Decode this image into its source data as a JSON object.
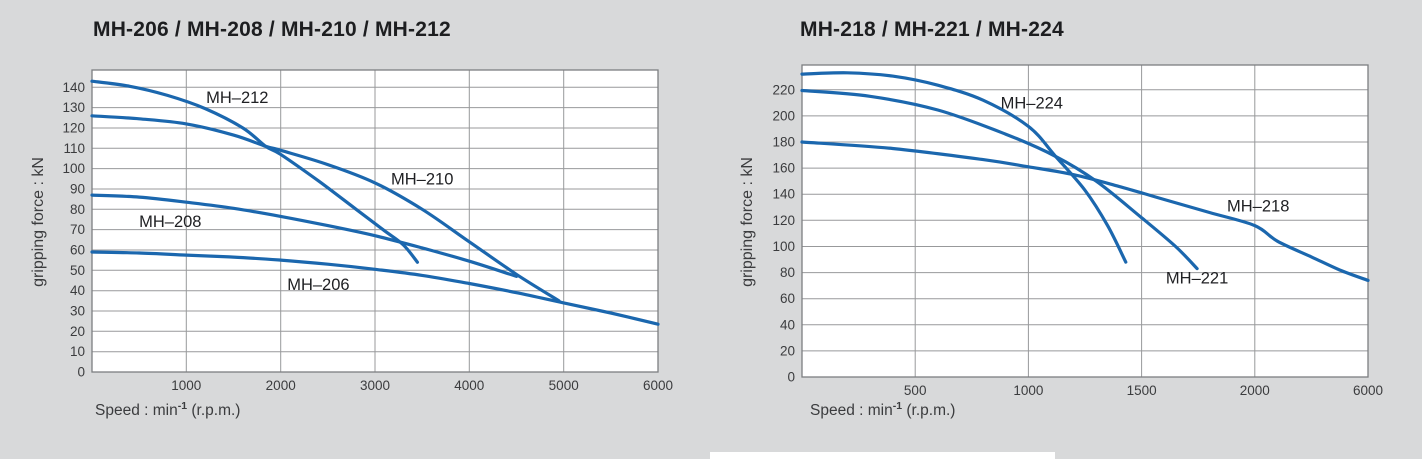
{
  "page": {
    "background": "#d8d9da"
  },
  "chart_data": [
    {
      "type": "line",
      "title": "MH-206 / MH-208 / MH-210 / MH-212",
      "ylabel": "gripping force : kN",
      "xlabel": "Speed : min⁻¹ (r.p.m.)",
      "xlabel_parts": {
        "main": "Speed : min",
        "sup": "-1",
        "tail": " (r.p.m.)"
      },
      "xlim": [
        0,
        6000
      ],
      "ylim": [
        0,
        148.5
      ],
      "x_segments": [
        {
          "from": 0,
          "to": 6000,
          "frac": 1
        }
      ],
      "xticks": [
        1000,
        2000,
        3000,
        4000,
        5000,
        6000
      ],
      "yticks": [
        0,
        10,
        20,
        30,
        40,
        50,
        60,
        70,
        80,
        90,
        100,
        110,
        120,
        130,
        140
      ],
      "grid": true,
      "legend": "inline-labels",
      "line_color": "#1b67ae",
      "series": [
        {
          "name": "MH–212",
          "label_xy": [
            1540,
            135
          ],
          "points": [
            [
              0,
              143
            ],
            [
              400,
              140.5
            ],
            [
              800,
              136
            ],
            [
              1200,
              129.5
            ],
            [
              1600,
              120
            ],
            [
              1840,
              111
            ],
            [
              2000,
              107
            ],
            [
              2400,
              94
            ],
            [
              2800,
              80
            ],
            [
              3100,
              69.5
            ],
            [
              3300,
              62.5
            ],
            [
              3450,
              54
            ]
          ]
        },
        {
          "name": "MH–210",
          "label_xy": [
            3500,
            95
          ],
          "points": [
            [
              0,
              126
            ],
            [
              500,
              124.5
            ],
            [
              1000,
              122
            ],
            [
              1500,
              116.5
            ],
            [
              1840,
              111
            ],
            [
              2000,
              109
            ],
            [
              2500,
              102
            ],
            [
              3000,
              93
            ],
            [
              3500,
              80
            ],
            [
              4000,
              64
            ],
            [
              4500,
              48
            ],
            [
              4950,
              35
            ]
          ]
        },
        {
          "name": "MH–208",
          "label_xy": [
            830,
            74
          ],
          "points": [
            [
              0,
              87
            ],
            [
              500,
              86
            ],
            [
              1000,
              83.5
            ],
            [
              1500,
              80.5
            ],
            [
              2000,
              76.5
            ],
            [
              2500,
              72
            ],
            [
              3000,
              67
            ],
            [
              3500,
              61
            ],
            [
              4000,
              54.5
            ],
            [
              4500,
              47
            ]
          ]
        },
        {
          "name": "MH–206",
          "label_xy": [
            2400,
            43
          ],
          "points": [
            [
              0,
              59
            ],
            [
              500,
              58.5
            ],
            [
              1000,
              57.5
            ],
            [
              1500,
              56.5
            ],
            [
              2000,
              55
            ],
            [
              2500,
              53
            ],
            [
              3000,
              50.5
            ],
            [
              3500,
              47.5
            ],
            [
              4000,
              43.5
            ],
            [
              4500,
              39
            ],
            [
              5000,
              34
            ],
            [
              5500,
              29
            ],
            [
              6000,
              23.5
            ]
          ]
        }
      ]
    },
    {
      "type": "line",
      "title": "MH-218 / MH-221 / MH-224",
      "ylabel": "gripping force : kN",
      "xlabel": "Speed : min⁻¹ (r.p.m.)",
      "xlabel_parts": {
        "main": "Speed : min",
        "sup": "-1",
        "tail": " (r.p.m.)"
      },
      "xlim": [
        0,
        6000
      ],
      "ylim": [
        0,
        239
      ],
      "x_segments": [
        {
          "from": 0,
          "to": 2000,
          "frac": 0.8
        },
        {
          "from": 2000,
          "to": 6000,
          "frac": 0.2
        }
      ],
      "xticks": [
        500,
        1000,
        1500,
        2000,
        6000
      ],
      "yticks": [
        0,
        20,
        40,
        60,
        80,
        100,
        120,
        140,
        160,
        180,
        200,
        220
      ],
      "grid": true,
      "legend": "inline-labels",
      "line_color": "#1b67ae",
      "series": [
        {
          "name": "MH–224",
          "label_xy": [
            1015,
            210
          ],
          "points": [
            [
              0,
              232
            ],
            [
              200,
              233
            ],
            [
              400,
              230.5
            ],
            [
              600,
              223.5
            ],
            [
              800,
              212
            ],
            [
              1000,
              192
            ],
            [
              1120,
              169
            ],
            [
              1250,
              143
            ],
            [
              1350,
              116
            ],
            [
              1430,
              88
            ]
          ]
        },
        {
          "name": "MH–221",
          "label_xy": [
            1745,
            76
          ],
          "points": [
            [
              0,
              219.5
            ],
            [
              300,
              215
            ],
            [
              600,
              204.5
            ],
            [
              900,
              186
            ],
            [
              1120,
              169
            ],
            [
              1300,
              150
            ],
            [
              1500,
              122
            ],
            [
              1650,
              100
            ],
            [
              1745,
              83
            ]
          ]
        },
        {
          "name": "MH–218",
          "label_xy": [
            2120,
            131
          ],
          "points": [
            [
              0,
              180
            ],
            [
              400,
              175
            ],
            [
              800,
              166.5
            ],
            [
              1000,
              161
            ],
            [
              1200,
              155
            ],
            [
              1400,
              146
            ],
            [
              1600,
              136
            ],
            [
              1800,
              126
            ],
            [
              2000,
              116
            ],
            [
              2800,
              104
            ],
            [
              4000,
              92
            ],
            [
              5000,
              82
            ],
            [
              6000,
              74
            ]
          ]
        }
      ]
    }
  ]
}
